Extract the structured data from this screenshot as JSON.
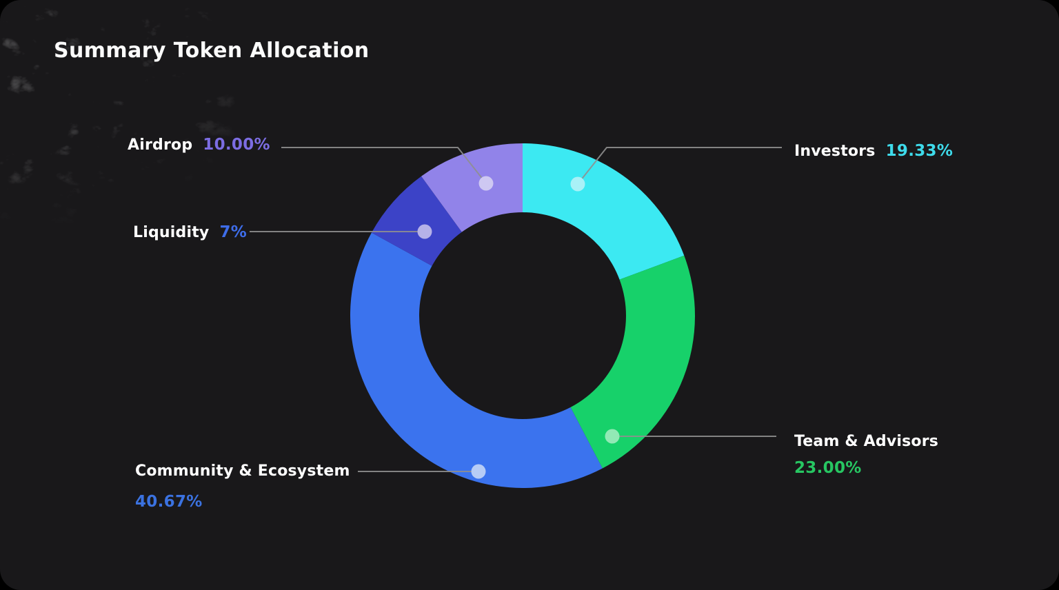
{
  "page": {
    "title": "Summary Token Allocation"
  },
  "colors": {
    "panel_bg": "#19181A",
    "outer_bg": "#000000",
    "leader_line": "#8F8F8F",
    "label_text": "#FFFFFF"
  },
  "chart_data": {
    "type": "pie",
    "subtype": "donut",
    "title": "Summary Token Allocation",
    "start_angle_deg": 0,
    "direction": "clockwise",
    "inner_radius_ratio": 0.6,
    "legend_position": "callouts",
    "segments": [
      {
        "label": "Investors",
        "value": 19.33,
        "value_text": "19.33%",
        "color": "#3CE9F2",
        "value_color": "#3EDBEB",
        "dot_color": "#A9F1F7"
      },
      {
        "label": "Team & Advisors",
        "value": 23.0,
        "value_text": "23.00%",
        "color": "#17D16A",
        "value_color": "#27C662",
        "dot_color": "#92E9B5"
      },
      {
        "label": "Community & Ecosystem",
        "value": 40.67,
        "value_text": "40.67%",
        "color": "#3B73EE",
        "value_color": "#3B72E0",
        "dot_color": "#B6CCF6"
      },
      {
        "label": "Liquidity",
        "value": 7.0,
        "value_text": "7%",
        "color": "#3C43C7",
        "value_color": "#3E6DEA",
        "dot_color": "#B5B1E8"
      },
      {
        "label": "Airdrop",
        "value": 10.0,
        "value_text": "10.00%",
        "color": "#9183E9",
        "value_color": "#7C6DE2",
        "dot_color": "#CEC8F2"
      }
    ]
  }
}
